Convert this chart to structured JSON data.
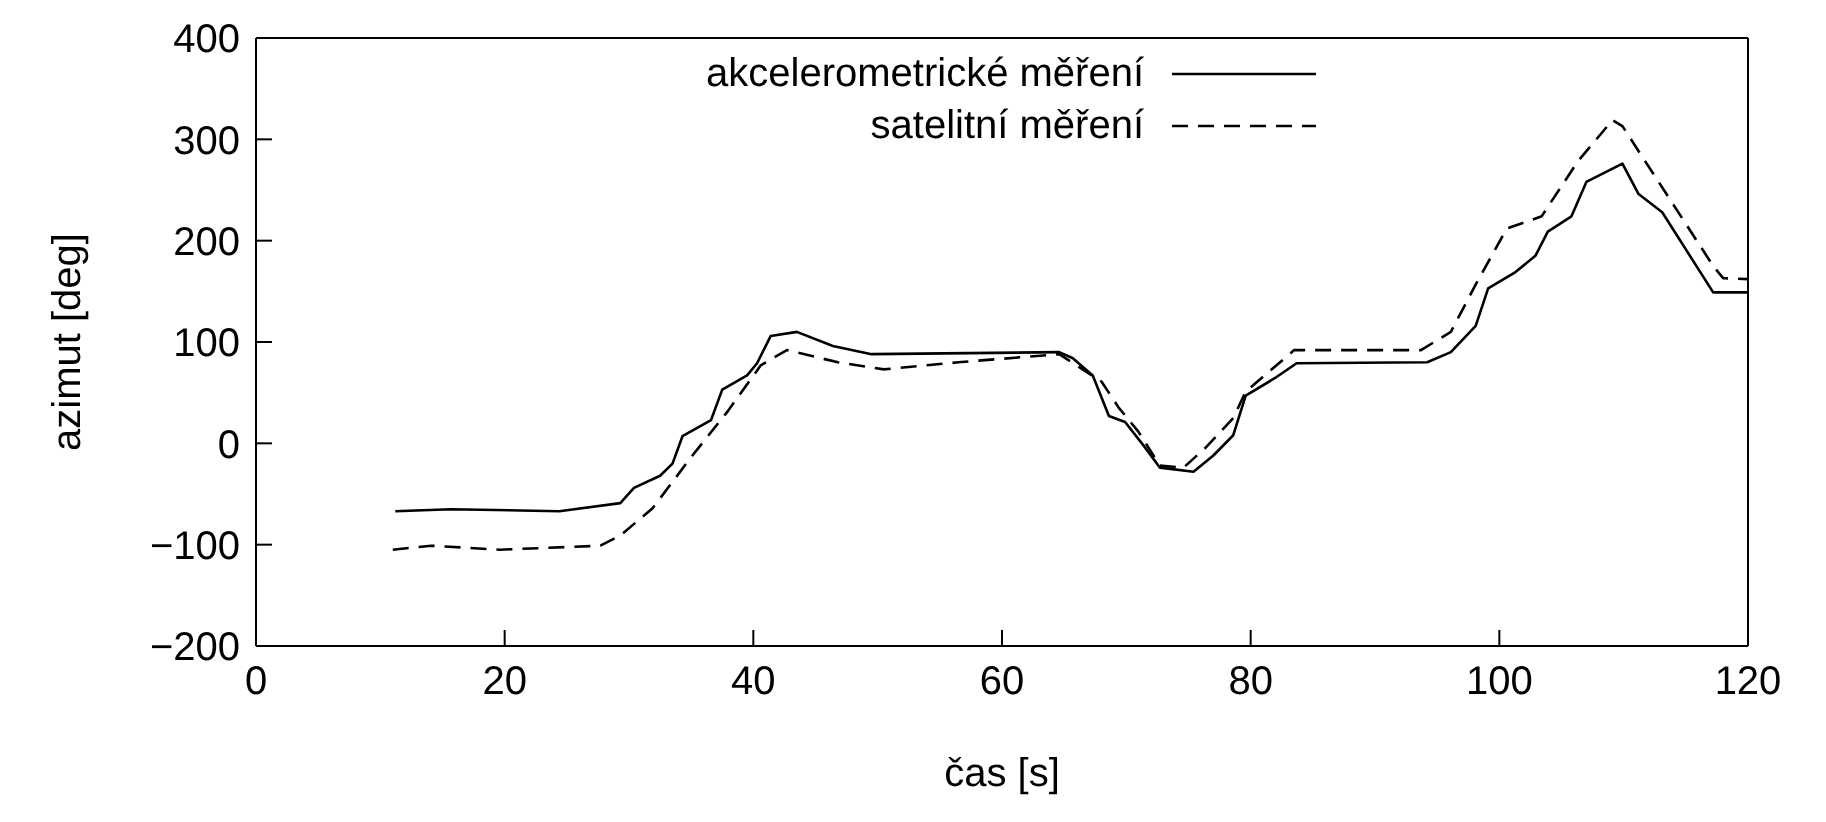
{
  "chart_data": {
    "type": "line",
    "xlabel": "čas [s]",
    "ylabel": "azimut [deg]",
    "xlim": [
      0,
      120
    ],
    "xticks": [
      0,
      20,
      40,
      60,
      80,
      100,
      120
    ],
    "ylim": [
      -200,
      400
    ],
    "yticks": [
      -200,
      -100,
      0,
      100,
      200,
      300,
      400
    ],
    "grid": false,
    "legend": "top right",
    "marker": "none",
    "series": [
      {
        "name": "akcelerometrické měření",
        "color": "#000000",
        "line_style": "solid",
        "x": [
          11.2,
          15.7,
          24.4,
          29.3,
          30.4,
          32.5,
          33.5,
          34.3,
          36.6,
          37.5,
          39.5,
          40.3,
          41.4,
          43.5,
          46.4,
          49.5,
          64.6,
          65.7,
          67.3,
          68.6,
          69.9,
          71.5,
          72.7,
          75.4,
          77,
          78.6,
          79.6,
          81.9,
          83.7,
          94.2,
          96.1,
          98.1,
          99.1,
          101.3,
          102.9,
          103.9,
          105.8,
          107,
          109.9,
          111.2,
          113.1,
          117.2,
          120
        ],
        "values": [
          -67,
          -65,
          -67,
          -59,
          -44,
          -32,
          -20,
          7,
          23,
          53,
          67,
          79,
          106,
          110,
          96,
          88,
          90,
          84,
          67,
          27,
          21,
          -4,
          -24,
          -28,
          -12,
          8,
          47,
          64,
          79,
          80,
          90,
          116,
          153,
          169,
          185,
          209,
          224,
          258,
          276,
          246,
          228,
          149,
          149
        ]
      },
      {
        "name": "satelitní měření",
        "color": "#000000",
        "line_style": "dashed",
        "x": [
          11,
          14.1,
          19.6,
          27.7,
          29.3,
          31.9,
          35.1,
          37.9,
          40.6,
          42.7,
          46.8,
          50.5,
          56.5,
          64.6,
          68,
          69.4,
          71,
          72.7,
          74.6,
          76.4,
          78.6,
          79.6,
          83.5,
          93.7,
          96.1,
          98.2,
          100.6,
          103.4,
          106.3,
          109.1,
          109.9,
          117.2,
          118,
          120
        ],
        "values": [
          -105,
          -101,
          -105,
          -101,
          -91,
          -64,
          -12,
          31,
          77,
          92,
          80,
          73,
          80,
          88,
          61,
          35,
          11,
          -22,
          -24,
          -4,
          25,
          51,
          92,
          92,
          110,
          159,
          212,
          224,
          278,
          319,
          313,
          175,
          163,
          162
        ]
      }
    ]
  }
}
